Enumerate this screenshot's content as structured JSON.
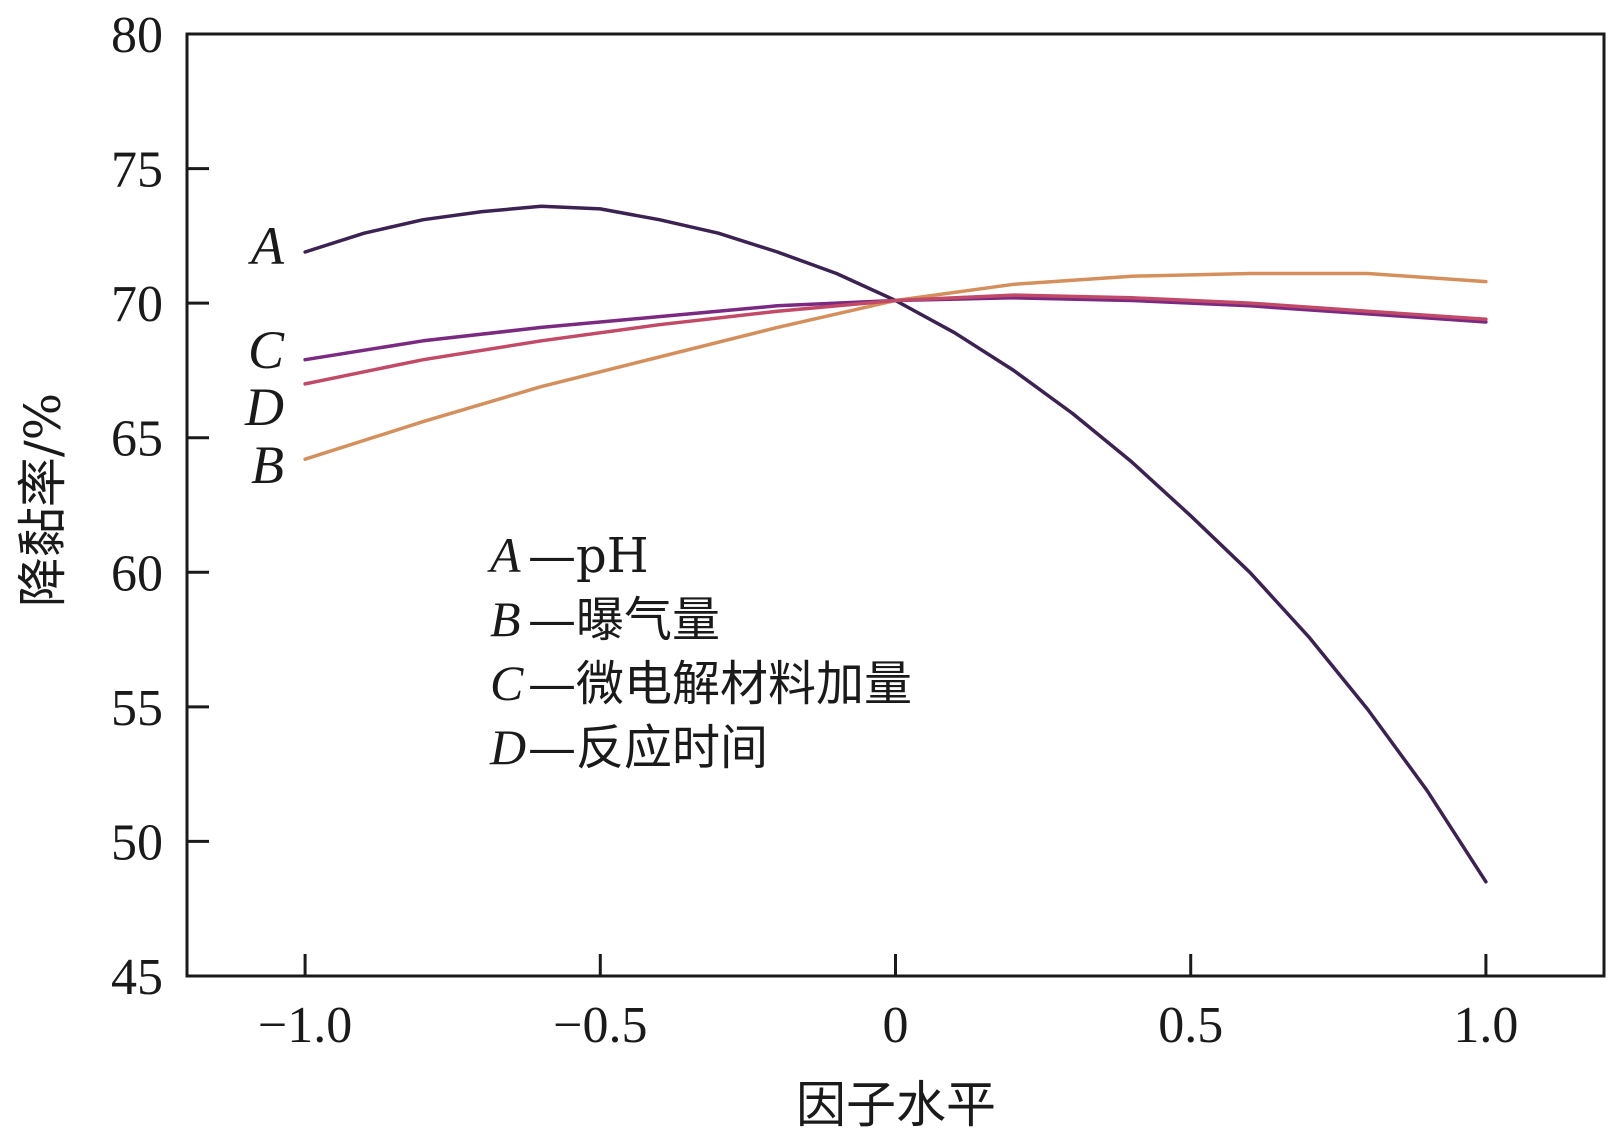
{
  "chart_data": {
    "type": "line",
    "xlabel": "因子水平",
    "ylabel": "降黏率/%",
    "xlim": [
      -1.2,
      1.2
    ],
    "ylim": [
      45,
      80
    ],
    "x_ticks": [
      -1.0,
      -0.5,
      0,
      0.5,
      1.0
    ],
    "x_tick_labels": [
      "−1.0",
      "−0.5",
      "0",
      "0.5",
      "1.0"
    ],
    "y_ticks": [
      45,
      50,
      55,
      60,
      65,
      70,
      75,
      80
    ],
    "y_tick_labels": [
      "45",
      "50",
      "55",
      "60",
      "65",
      "70",
      "75",
      "80"
    ],
    "grid": false,
    "series": [
      {
        "name": "A",
        "color": "#3b2252",
        "x": [
          -1.0,
          -0.9,
          -0.8,
          -0.7,
          -0.6,
          -0.5,
          -0.4,
          -0.3,
          -0.2,
          -0.1,
          0.0,
          0.1,
          0.2,
          0.3,
          0.4,
          0.5,
          0.6,
          0.7,
          0.8,
          0.9,
          1.0
        ],
        "y": [
          71.9,
          72.6,
          73.1,
          73.4,
          73.6,
          73.5,
          73.1,
          72.6,
          71.9,
          71.1,
          70.1,
          68.9,
          67.5,
          65.9,
          64.1,
          62.1,
          60.0,
          57.6,
          54.9,
          51.9,
          48.5
        ]
      },
      {
        "name": "B",
        "color": "#d48f5c",
        "x": [
          -1.0,
          -0.8,
          -0.6,
          -0.4,
          -0.2,
          0.0,
          0.2,
          0.4,
          0.6,
          0.8,
          1.0
        ],
        "y": [
          64.2,
          65.6,
          66.9,
          68.0,
          69.1,
          70.1,
          70.7,
          71.0,
          71.1,
          71.1,
          70.8
        ]
      },
      {
        "name": "C",
        "color": "#7a2a80",
        "x": [
          -1.0,
          -0.8,
          -0.6,
          -0.4,
          -0.2,
          0.0,
          0.2,
          0.4,
          0.6,
          0.8,
          1.0
        ],
        "y": [
          67.9,
          68.6,
          69.1,
          69.5,
          69.9,
          70.1,
          70.2,
          70.1,
          69.9,
          69.6,
          69.3
        ]
      },
      {
        "name": "D",
        "color": "#c24a68",
        "x": [
          -1.0,
          -0.8,
          -0.6,
          -0.4,
          -0.2,
          0.0,
          0.2,
          0.4,
          0.6,
          0.8,
          1.0
        ],
        "y": [
          67.0,
          67.9,
          68.6,
          69.2,
          69.7,
          70.1,
          70.3,
          70.2,
          70.0,
          69.7,
          69.4
        ]
      }
    ],
    "curve_labels": [
      "A",
      "C",
      "D",
      "B"
    ],
    "legend": [
      {
        "key": "A",
        "text": "—pH"
      },
      {
        "key": "B",
        "text": "—曝气量"
      },
      {
        "key": "C",
        "text": "—微电解材料加量"
      },
      {
        "key": "D",
        "text": "—反应时间"
      }
    ],
    "legend_position": "center-left"
  }
}
